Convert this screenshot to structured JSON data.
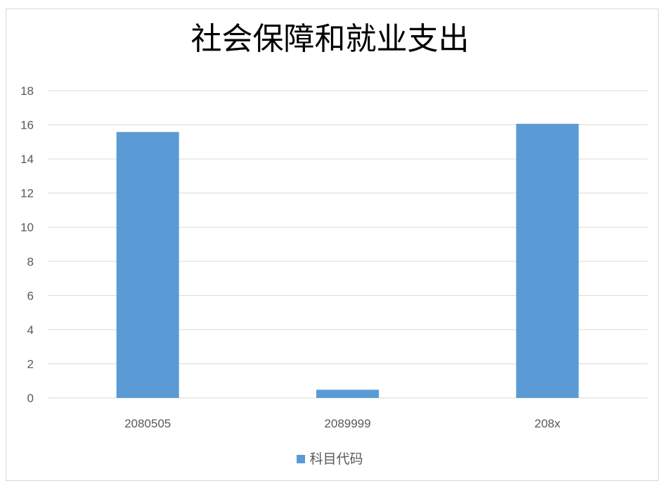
{
  "chart_data": {
    "type": "bar",
    "title": "社会保障和就业支出",
    "categories": [
      "2080505",
      "2089999",
      "208x"
    ],
    "series": [
      {
        "name": "科目代码",
        "values": [
          15.58,
          0.48,
          16.06
        ],
        "color": "#5b9bd5"
      }
    ],
    "ylim": [
      0,
      18
    ],
    "yticks": [
      0,
      2,
      4,
      6,
      8,
      10,
      12,
      14,
      16,
      18
    ],
    "grid": true,
    "legend_position": "bottom"
  }
}
